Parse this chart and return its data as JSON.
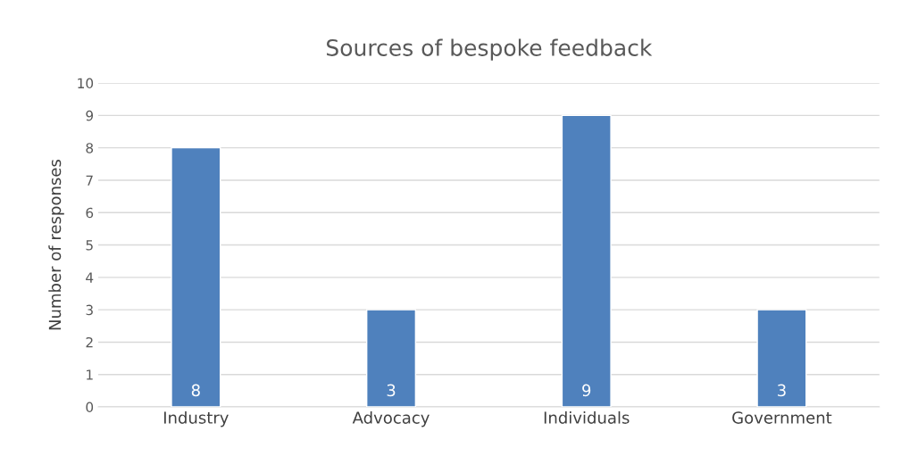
{
  "chart_data": {
    "type": "bar",
    "title": "Sources of bespoke feedback",
    "ylabel": "Number of responses",
    "categories": [
      "Industry",
      "Advocacy",
      "Individuals",
      "Government"
    ],
    "values": [
      8,
      3,
      9,
      3
    ],
    "color": "#4f81bd",
    "ylim": [
      0,
      10
    ],
    "yticks": [
      0,
      1,
      2,
      3,
      4,
      5,
      6,
      7,
      8,
      9,
      10
    ],
    "grid": "y",
    "data_labels": true
  }
}
